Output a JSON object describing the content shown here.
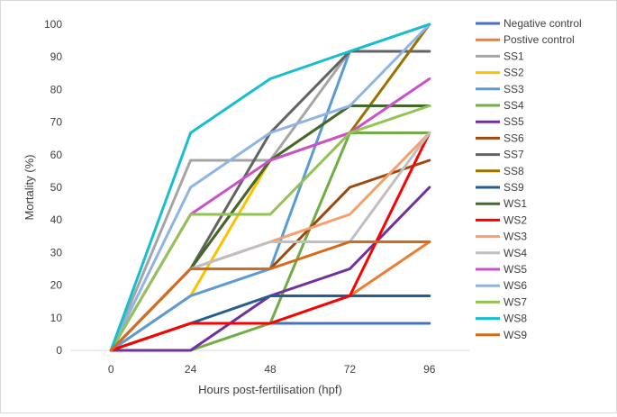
{
  "chart_data": {
    "type": "line",
    "xlabel": "Hours post-fertilisation (hpf)",
    "ylabel": "Mortality (%)",
    "x": [
      0,
      24,
      48,
      72,
      96
    ],
    "ylim": [
      0,
      100
    ],
    "yticks": [
      0,
      10,
      20,
      30,
      40,
      50,
      60,
      70,
      80,
      90,
      100
    ],
    "grid": false,
    "legend_position": "right",
    "series": [
      {
        "name": "Negative control",
        "color": "#4472C4",
        "values": [
          0,
          8.3,
          8.3,
          8.3,
          8.3
        ]
      },
      {
        "name": "Postive control",
        "color": "#ED7D31",
        "values": [
          0,
          8.3,
          8.3,
          16.7,
          33.3
        ]
      },
      {
        "name": "SS1",
        "color": "#A5A5A5",
        "values": [
          0,
          58.3,
          58.3,
          91.7,
          91.7
        ]
      },
      {
        "name": "SS2",
        "color": "#FFC000",
        "values": [
          0,
          16.7,
          58.3,
          75,
          75
        ]
      },
      {
        "name": "SS3",
        "color": "#5B9BD5",
        "values": [
          0,
          16.7,
          25,
          91.7,
          100
        ]
      },
      {
        "name": "SS4",
        "color": "#70AD47",
        "values": [
          0,
          0,
          8.3,
          66.7,
          66.7
        ]
      },
      {
        "name": "SS5",
        "color": "#7030A0",
        "values": [
          0,
          0,
          16.7,
          25,
          50
        ]
      },
      {
        "name": "SS6",
        "color": "#9E480E",
        "values": [
          0,
          25,
          25,
          50,
          58.3
        ]
      },
      {
        "name": "SS7",
        "color": "#636363",
        "values": [
          0,
          25,
          66.7,
          91.7,
          91.7
        ]
      },
      {
        "name": "SS8",
        "color": "#997300",
        "values": [
          0,
          25,
          58.3,
          66.7,
          100
        ]
      },
      {
        "name": "SS9",
        "color": "#255E91",
        "values": [
          0,
          8.3,
          16.7,
          16.7,
          16.7
        ]
      },
      {
        "name": "WS1",
        "color": "#43682B",
        "values": [
          0,
          25,
          58.3,
          75,
          75
        ]
      },
      {
        "name": "WS2",
        "color": "#FF0000",
        "values": [
          0,
          8.3,
          8.3,
          16.7,
          66.7
        ]
      },
      {
        "name": "WS3",
        "color": "#F4A06B",
        "values": [
          0,
          25,
          33.3,
          41.7,
          66.7
        ]
      },
      {
        "name": "WS4",
        "color": "#BFBFBF",
        "values": [
          0,
          25,
          33.3,
          33.3,
          66.7
        ]
      },
      {
        "name": "WS5",
        "color": "#CC4FCC",
        "values": [
          0,
          41.7,
          58.3,
          66.7,
          83.3
        ]
      },
      {
        "name": "WS6",
        "color": "#8FB4E3",
        "values": [
          0,
          50,
          66.7,
          75,
          100
        ]
      },
      {
        "name": "WS7",
        "color": "#92C353",
        "values": [
          0,
          41.7,
          41.7,
          66.7,
          75
        ]
      },
      {
        "name": "WS8",
        "color": "#17BECF",
        "values": [
          0,
          66.7,
          83.3,
          91.7,
          100
        ]
      },
      {
        "name": "WS9",
        "color": "#D46A1C",
        "values": [
          0,
          25,
          25,
          33.3,
          33.3
        ]
      }
    ]
  }
}
